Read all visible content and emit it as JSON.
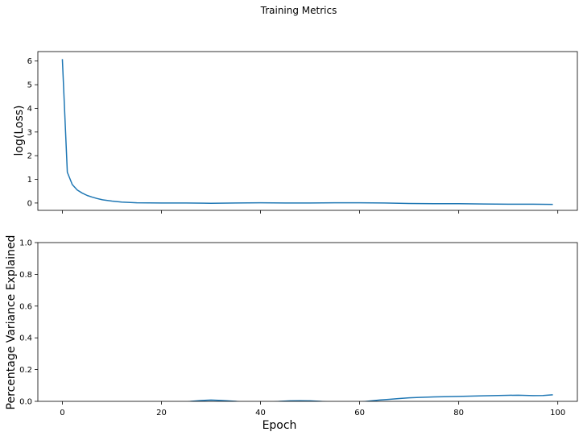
{
  "figure": {
    "title": "Training Metrics"
  },
  "chart_data": [
    {
      "type": "line",
      "title": "",
      "xlabel": "",
      "ylabel": "log(Loss)",
      "xlim": [
        -4.95,
        103.95
      ],
      "ylim": [
        -0.31,
        6.4
      ],
      "x_ticks": [
        0,
        20,
        40,
        60,
        80,
        100
      ],
      "x_tick_labels": [
        "",
        "",
        "",
        "",
        "",
        ""
      ],
      "y_ticks": [
        0,
        1,
        2,
        3,
        4,
        5,
        6
      ],
      "y_tick_labels": [
        "0",
        "1",
        "2",
        "3",
        "4",
        "5",
        "6"
      ],
      "grid": false,
      "color": "#1f77b4",
      "series": [
        {
          "x": [
            0,
            1,
            2,
            3,
            4,
            5,
            6,
            7,
            8,
            10,
            12,
            15,
            20,
            25,
            30,
            35,
            40,
            45,
            50,
            55,
            60,
            65,
            70,
            75,
            80,
            85,
            90,
            95,
            99
          ],
          "y": [
            6.08,
            1.3,
            0.78,
            0.55,
            0.42,
            0.32,
            0.25,
            0.19,
            0.14,
            0.08,
            0.04,
            0.01,
            0.0,
            0.0,
            -0.01,
            0.0,
            0.01,
            0.0,
            0.0,
            0.01,
            0.01,
            0.0,
            -0.02,
            -0.03,
            -0.03,
            -0.04,
            -0.05,
            -0.05,
            -0.06
          ]
        }
      ]
    },
    {
      "type": "line",
      "title": "",
      "xlabel": "Epoch",
      "ylabel": "Percentage Variance Explained",
      "xlim": [
        -4.95,
        103.95
      ],
      "ylim": [
        0.0,
        1.0
      ],
      "x_ticks": [
        0,
        20,
        40,
        60,
        80,
        100
      ],
      "x_tick_labels": [
        "0",
        "20",
        "40",
        "60",
        "80",
        "100"
      ],
      "y_ticks": [
        0.0,
        0.2,
        0.4,
        0.6,
        0.8,
        1.0
      ],
      "y_tick_labels": [
        "0.0",
        "0.2",
        "0.4",
        "0.6",
        "0.8",
        "1.0"
      ],
      "grid": false,
      "color": "#1f77b4",
      "series": [
        {
          "x": [
            0,
            5,
            10,
            15,
            20,
            22,
            24,
            26,
            28,
            30,
            32,
            34,
            35,
            36,
            38,
            40,
            42,
            44,
            46,
            48,
            50,
            52,
            54,
            56,
            58,
            60,
            62,
            64,
            66,
            68,
            70,
            72,
            75,
            80,
            85,
            90,
            92,
            95,
            97,
            99
          ],
          "y": [
            -0.08,
            -0.07,
            -0.06,
            -0.05,
            -0.03,
            -0.02,
            -0.01,
            0.0,
            0.005,
            0.008,
            0.006,
            0.002,
            0.0,
            -0.005,
            -0.01,
            -0.01,
            -0.005,
            0.0,
            0.003,
            0.004,
            0.003,
            0.0,
            -0.005,
            -0.01,
            -0.01,
            -0.005,
            0.002,
            0.008,
            0.013,
            0.018,
            0.022,
            0.025,
            0.028,
            0.031,
            0.035,
            0.038,
            0.039,
            0.036,
            0.037,
            0.041
          ]
        }
      ]
    }
  ]
}
